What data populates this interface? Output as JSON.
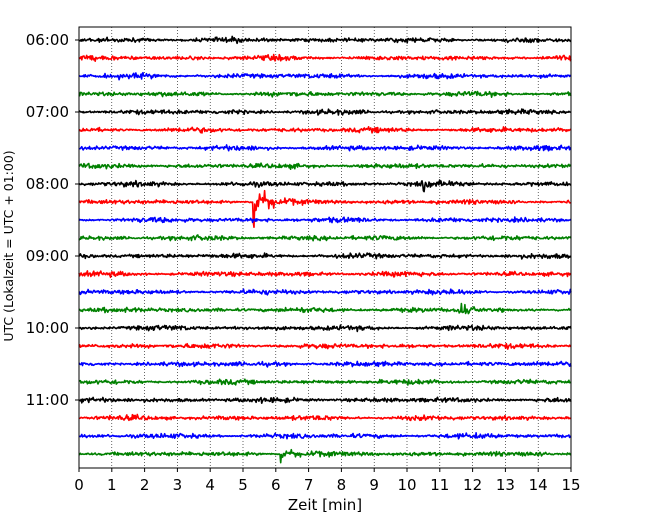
{
  "chart_data": {
    "type": "line",
    "title": "",
    "xlabel": "Zeit  [min]",
    "ylabel": "UTC (Lokalzeit = UTC + 01:00)",
    "xlim": [
      0,
      15
    ],
    "x_ticks": [
      "0",
      "1",
      "2",
      "3",
      "4",
      "5",
      "6",
      "7",
      "8",
      "9",
      "10",
      "11",
      "12",
      "13",
      "14",
      "15"
    ],
    "x_grid": "dotted vertical lines at every minute",
    "y_ticks": [
      "06:00",
      "07:00",
      "08:00",
      "09:00",
      "10:00",
      "11:00"
    ],
    "trace_interval_min": 15,
    "start_time": "06:00",
    "colors": [
      "#000000",
      "#ff0000",
      "#0000ff",
      "#008000"
    ],
    "traces": [
      {
        "time": "06:00",
        "color": "#000000",
        "events": []
      },
      {
        "time": "06:15",
        "color": "#ff0000",
        "events": []
      },
      {
        "time": "06:30",
        "color": "#0000ff",
        "events": []
      },
      {
        "time": "06:45",
        "color": "#008000",
        "events": []
      },
      {
        "time": "07:00",
        "color": "#000000",
        "events": []
      },
      {
        "time": "07:15",
        "color": "#ff0000",
        "events": []
      },
      {
        "time": "07:30",
        "color": "#0000ff",
        "events": []
      },
      {
        "time": "07:45",
        "color": "#008000",
        "events": []
      },
      {
        "time": "08:00",
        "color": "#000000",
        "events": [
          {
            "t": 10.5,
            "amp": 0.8
          }
        ]
      },
      {
        "time": "08:15",
        "color": "#ff0000",
        "events": [
          {
            "t": 5.35,
            "amp": 3.5
          }
        ]
      },
      {
        "time": "08:30",
        "color": "#0000ff",
        "events": []
      },
      {
        "time": "08:45",
        "color": "#008000",
        "events": []
      },
      {
        "time": "09:00",
        "color": "#000000",
        "events": []
      },
      {
        "time": "09:15",
        "color": "#ff0000",
        "events": []
      },
      {
        "time": "09:30",
        "color": "#0000ff",
        "events": []
      },
      {
        "time": "09:45",
        "color": "#008000",
        "events": [
          {
            "t": 11.6,
            "amp": 1.0
          }
        ]
      },
      {
        "time": "10:00",
        "color": "#000000",
        "events": []
      },
      {
        "time": "10:15",
        "color": "#ff0000",
        "events": []
      },
      {
        "time": "10:30",
        "color": "#0000ff",
        "events": []
      },
      {
        "time": "10:45",
        "color": "#008000",
        "events": []
      },
      {
        "time": "11:00",
        "color": "#000000",
        "events": []
      },
      {
        "time": "11:15",
        "color": "#ff0000",
        "events": []
      },
      {
        "time": "11:30",
        "color": "#0000ff",
        "events": []
      },
      {
        "time": "11:45",
        "color": "#008000",
        "events": [
          {
            "t": 6.2,
            "amp": 1.2
          }
        ]
      }
    ]
  }
}
